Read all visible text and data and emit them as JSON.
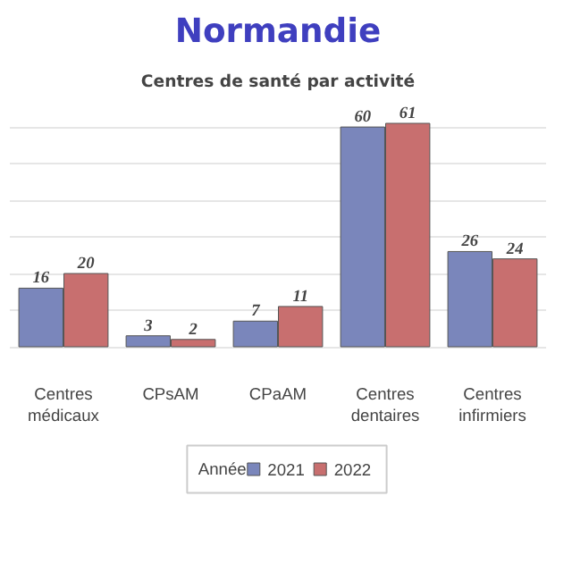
{
  "chart_data": {
    "type": "bar",
    "title": "Normandie",
    "subtitle": "Centres de santé par activité",
    "legend_title": "Année",
    "categories": [
      "Centres médicaux",
      "CPsAM",
      "CPaAM",
      "Centres dentaires",
      "Centres infirmiers"
    ],
    "series": [
      {
        "name": "2021",
        "color": "#7a86bb",
        "values": [
          16,
          3,
          7,
          60,
          26
        ]
      },
      {
        "name": "2022",
        "color": "#c86f6f",
        "values": [
          20,
          2,
          11,
          61,
          24
        ]
      }
    ],
    "grid": "y",
    "legend": "bottom",
    "data_labels": true,
    "tick_labels": "x"
  }
}
